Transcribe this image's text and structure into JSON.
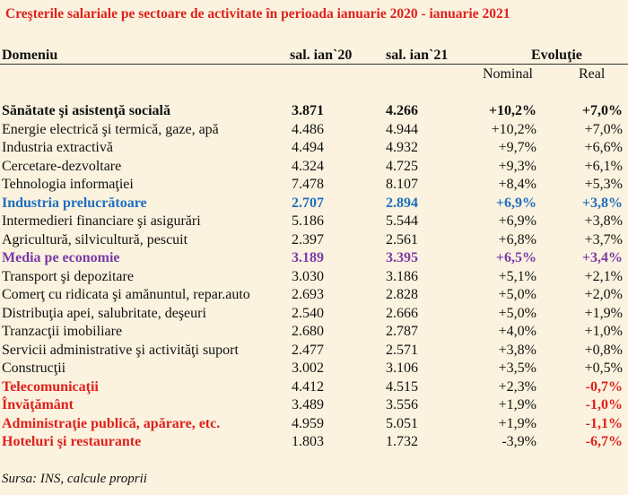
{
  "title": "Creşterile salariale pe sectoare de activitate în perioada ianuarie 2020 - ianuarie 2021",
  "table": {
    "headers": [
      "Domeniu",
      "sal. ian`20",
      "sal. ian`21",
      "Evoluţie"
    ],
    "subheaders": [
      "Nominal",
      "Real"
    ],
    "rows": [
      [
        "Sănătate şi asistenţă socială",
        "3.871",
        "4.266",
        "+10,2%",
        "+7,0%"
      ],
      [
        "Energie electrică şi termică, gaze, apă",
        "4.486",
        "4.944",
        "+10,2%",
        "+7,0%"
      ],
      [
        "Industria extractivă",
        "4.494",
        "4.932",
        "+9,7%",
        "+6,6%"
      ],
      [
        "Cercetare-dezvoltare",
        "4.324",
        "4.725",
        "+9,3%",
        "+6,1%"
      ],
      [
        "Tehnologia informaţiei",
        "7.478",
        "8.107",
        "+8,4%",
        "+5,3%"
      ],
      [
        "Industria prelucrătoare",
        "2.707",
        "2.894",
        "+6,9%",
        "+3,8%"
      ],
      [
        "Intermedieri financiare şi asigurări",
        "5.186",
        "5.544",
        "+6,9%",
        "+3,8%"
      ],
      [
        "Agricultură, silvicultură, pescuit",
        "2.397",
        "2.561",
        "+6,8%",
        "+3,7%"
      ],
      [
        "Media pe economie",
        "3.189",
        "3.395",
        "+6,5%",
        "+3,4%"
      ],
      [
        "Transport şi depozitare",
        "3.030",
        "3.186",
        "+5,1%",
        "+2,1%"
      ],
      [
        "Comerţ cu ridicata şi amănuntul, repar.auto",
        "2.693",
        "2.828",
        "+5,0%",
        "+2,0%"
      ],
      [
        "Distribuţia apei, salubritate, deşeuri",
        "2.540",
        "2.666",
        "+5,0%",
        "+1,9%"
      ],
      [
        "Tranzacţii imobiliare",
        "2.680",
        "2.787",
        "+4,0%",
        "+1,0%"
      ],
      [
        "Servicii administrative şi activităţi suport",
        "2.477",
        "2.571",
        "+3,8%",
        "+0,8%"
      ],
      [
        "Construcţii",
        "3.002",
        "3.106",
        "+3,5%",
        "+0,5%"
      ],
      [
        "Telecomunicaţii",
        "4.412",
        "4.515",
        "+2,3%",
        "-0,7%"
      ],
      [
        "Învăţământ",
        "3.489",
        "3.556",
        "+1,9%",
        "-1,0%"
      ],
      [
        "Administraţie publică, apărare, etc.",
        "4.959",
        "5.051",
        "+1,9%",
        "-1,1%"
      ],
      [
        "Hoteluri şi restaurante",
        "1.803",
        "1.732",
        "-3,9%",
        "-6,7%"
      ]
    ]
  },
  "source": "Sursa: INS, calcule proprii"
}
